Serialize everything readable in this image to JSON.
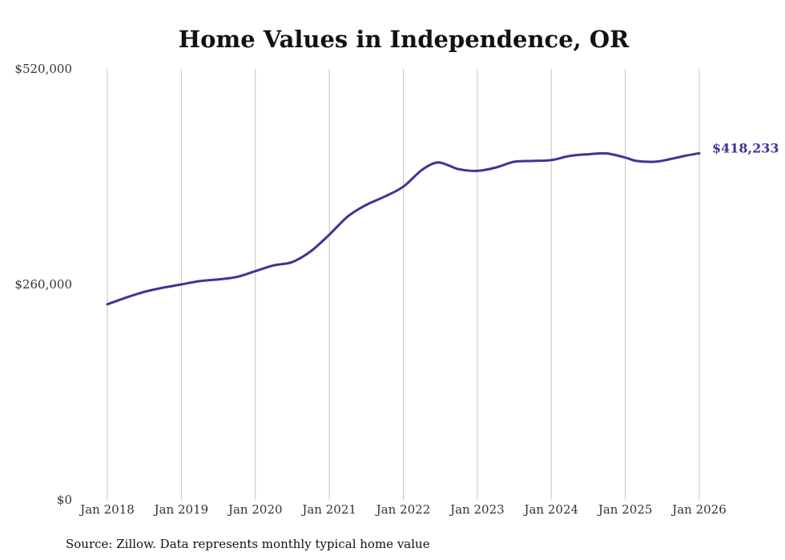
{
  "chart_data": {
    "type": "line",
    "title": "Home Values in Independence, OR",
    "xlabel": "",
    "ylabel": "",
    "y_ticks": [
      {
        "value": 0,
        "label": "$0"
      },
      {
        "value": 260000,
        "label": "$260,000"
      },
      {
        "value": 520000,
        "label": "$520,000"
      }
    ],
    "ylim": [
      0,
      520000
    ],
    "x_ticks": [
      {
        "value": 2018,
        "label": "Jan 2018"
      },
      {
        "value": 2019,
        "label": "Jan 2019"
      },
      {
        "value": 2020,
        "label": "Jan 2020"
      },
      {
        "value": 2021,
        "label": "Jan 2021"
      },
      {
        "value": 2022,
        "label": "Jan 2022"
      },
      {
        "value": 2023,
        "label": "Jan 2023"
      },
      {
        "value": 2024,
        "label": "Jan 2024"
      },
      {
        "value": 2025,
        "label": "Jan 2025"
      },
      {
        "value": 2026,
        "label": "Jan 2026"
      }
    ],
    "xlim": [
      2018,
      2026
    ],
    "grid": "vertical",
    "series": [
      {
        "name": "Typical home value",
        "color": "#3d3595",
        "x": [
          2018.0,
          2018.25,
          2018.5,
          2018.75,
          2019.0,
          2019.25,
          2019.5,
          2019.75,
          2020.0,
          2020.25,
          2020.5,
          2020.75,
          2021.0,
          2021.25,
          2021.5,
          2021.75,
          2022.0,
          2022.25,
          2022.45,
          2022.6,
          2022.75,
          2023.0,
          2023.25,
          2023.5,
          2023.75,
          2024.0,
          2024.25,
          2024.5,
          2024.75,
          2025.0,
          2025.15,
          2025.4,
          2025.6,
          2025.8,
          2026.0
        ],
        "values": [
          236000,
          244000,
          251000,
          256000,
          260000,
          264000,
          266000,
          269000,
          276000,
          283000,
          287000,
          300000,
          320000,
          342000,
          356000,
          366000,
          378000,
          398000,
          407000,
          404000,
          399000,
          397000,
          401000,
          408000,
          409000,
          410000,
          415000,
          417000,
          418000,
          413000,
          409000,
          408000,
          411000,
          415000,
          418233
        ]
      }
    ],
    "end_label": "$418,233",
    "annotations": [
      {
        "x": 2026,
        "y": 418233,
        "text": "$418,233"
      }
    ]
  },
  "source_note": "Source: Zillow. Data represents monthly typical home value"
}
